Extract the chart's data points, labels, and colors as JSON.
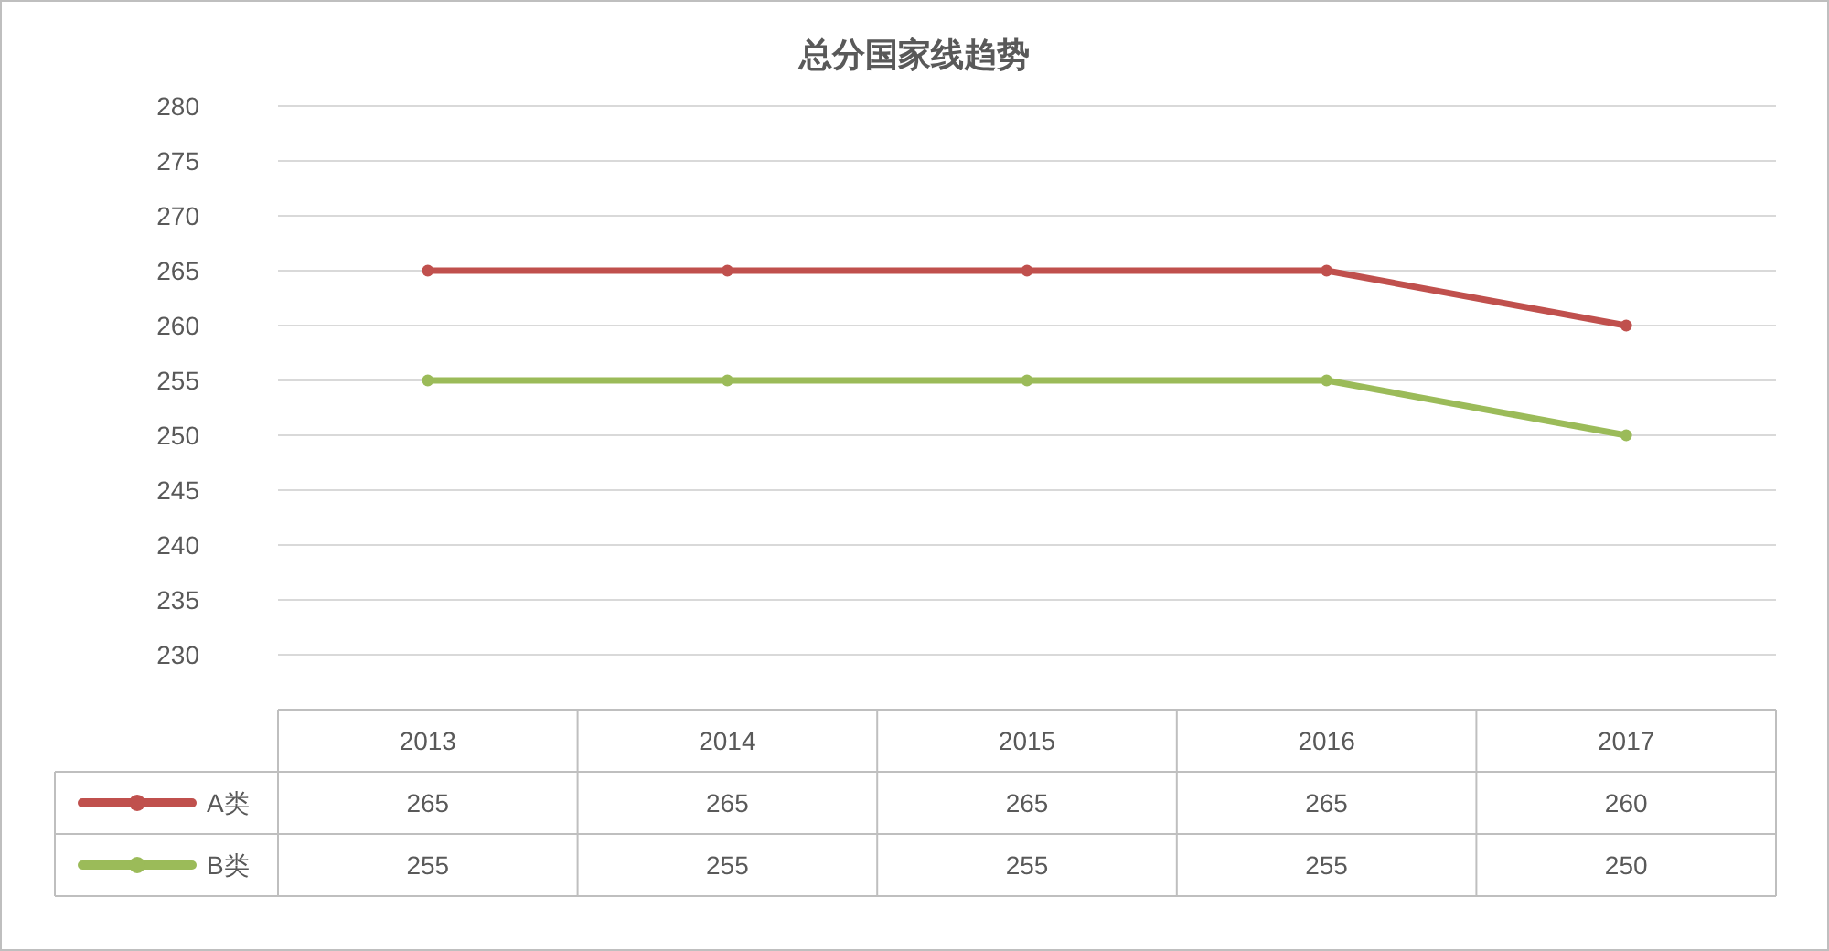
{
  "chart_data": {
    "type": "line",
    "title": "总分国家线趋势",
    "categories": [
      "2013",
      "2014",
      "2015",
      "2016",
      "2017"
    ],
    "series": [
      {
        "name": "A类",
        "color": "#c0504d",
        "values": [
          265,
          265,
          265,
          265,
          260
        ]
      },
      {
        "name": "B类",
        "color": "#9bbb59",
        "values": [
          255,
          255,
          255,
          255,
          250
        ]
      }
    ],
    "ylim": [
      230,
      280
    ],
    "yticks": [
      230,
      235,
      240,
      245,
      250,
      255,
      260,
      265,
      270,
      275,
      280
    ],
    "grid": "y",
    "marker": "circle",
    "line_style": "solid",
    "legend": "bottom",
    "data_labels": true
  }
}
